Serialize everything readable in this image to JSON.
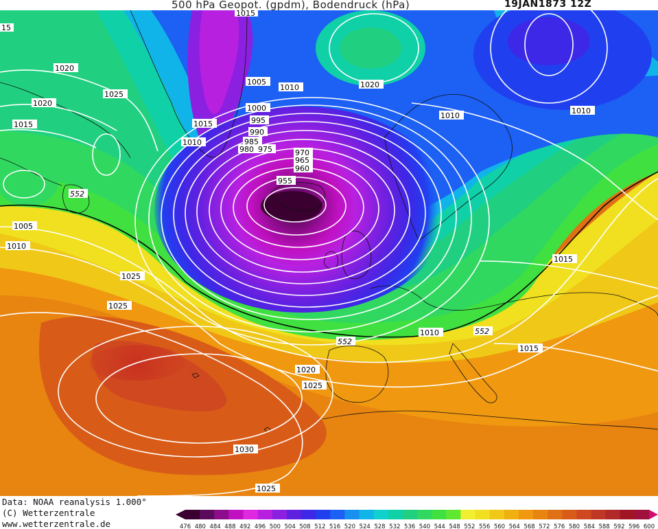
{
  "header": {
    "title": "500 hPa Geopot. (gpdm), Bodendruck (hPa)",
    "date": "19JAN1873 12Z"
  },
  "footer": {
    "source": "Data: NOAA reanalysis 1.000°",
    "copyright": "(C) Wetterzentrale",
    "url": "www.wetterzentrale.de"
  },
  "legend": {
    "ticks": [
      "476",
      "480",
      "484",
      "488",
      "492",
      "496",
      "500",
      "504",
      "508",
      "512",
      "516",
      "520",
      "524",
      "528",
      "532",
      "536",
      "540",
      "544",
      "548",
      "552",
      "556",
      "560",
      "564",
      "568",
      "572",
      "576",
      "580",
      "584",
      "588",
      "592",
      "596",
      "600"
    ],
    "colors": [
      "#3a0030",
      "#5c0a5c",
      "#8c0c8c",
      "#c010c0",
      "#e028e0",
      "#b820e0",
      "#8c20e0",
      "#6020e0",
      "#3c28e6",
      "#2040f0",
      "#1c60f4",
      "#1890f0",
      "#10b4e8",
      "#10d0d0",
      "#10d0a8",
      "#20d080",
      "#30d860",
      "#40e040",
      "#60e830",
      "#f0f030",
      "#f0e020",
      "#f0c818",
      "#f0b010",
      "#f09810",
      "#e88410",
      "#e07014",
      "#d85c18",
      "#d04820",
      "#c03824",
      "#b02828",
      "#a01424",
      "#a0103c"
    ],
    "colors_note_unused": ""
  },
  "contour_labels": {
    "isobars": [
      "1015",
      "15",
      "1020",
      "1025",
      "1020",
      "1015",
      "1010",
      "1005",
      "1000",
      "995",
      "990",
      "985",
      "980",
      "975",
      "970",
      "965",
      "960",
      "955",
      "1020",
      "1010",
      "1010",
      "1015",
      "1010",
      "1005",
      "1010",
      "1025",
      "1025",
      "1010",
      "1015",
      "1015",
      "1020",
      "1025",
      "1030",
      "1025"
    ],
    "geopot": [
      "552",
      "552",
      "552"
    ]
  }
}
